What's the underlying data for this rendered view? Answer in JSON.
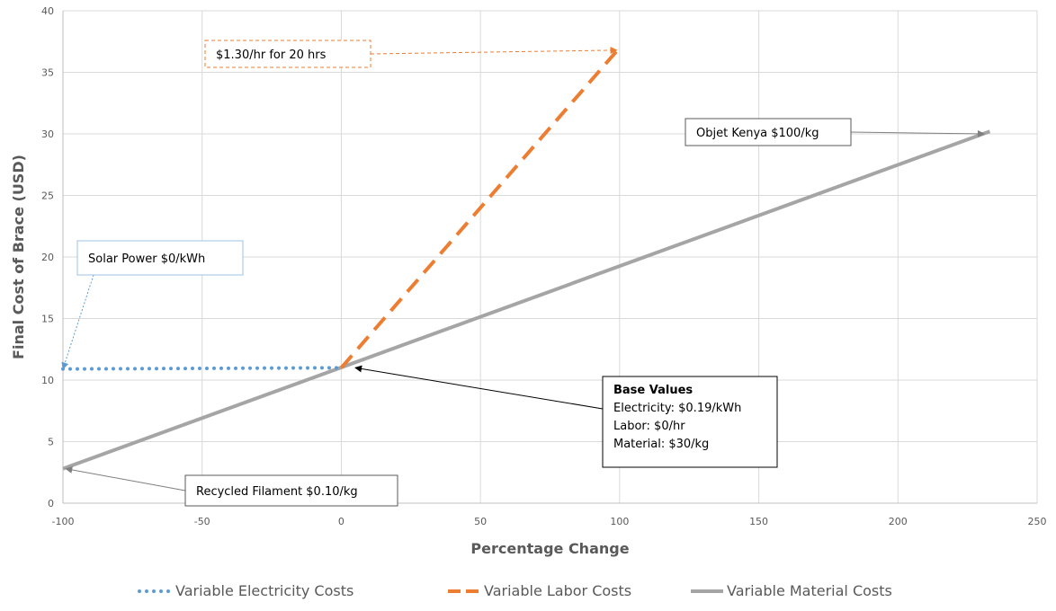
{
  "colors": {
    "electricity": "#5B9BD5",
    "labor": "#ED7D31",
    "material": "#A5A5A5",
    "grid": "#D9D9D9",
    "axis": "#BFBFBF"
  },
  "chart_data": {
    "type": "line",
    "xlabel": "Percentage Change",
    "ylabel": "Final Cost of Brace (USD)",
    "xlim": [
      -100,
      250
    ],
    "ylim": [
      0,
      40
    ],
    "x_ticks": [
      -100,
      -50,
      0,
      50,
      100,
      150,
      200,
      250
    ],
    "y_ticks": [
      0,
      5,
      10,
      15,
      20,
      25,
      30,
      35,
      40
    ],
    "grid": true,
    "legend_position": "bottom",
    "series": [
      {
        "name": "Variable Electricity Costs",
        "style": "dotted",
        "x": [
          -100,
          0
        ],
        "y": [
          10.9,
          11.0
        ]
      },
      {
        "name": "Variable Labor Costs",
        "style": "dashed",
        "x": [
          0,
          100
        ],
        "y": [
          11.0,
          37.0
        ]
      },
      {
        "name": "Variable Material Costs",
        "style": "solid",
        "x": [
          -100,
          233
        ],
        "y": [
          2.8,
          30.2
        ]
      }
    ],
    "annotations": [
      {
        "id": "labor-note",
        "lines": [
          "$1.30/hr for 20 hrs"
        ],
        "box_style": "dashed-orange",
        "target": [
          99,
          36.8
        ]
      },
      {
        "id": "material-high-note",
        "lines": [
          "Objet Kenya $100/kg"
        ],
        "box_style": "solid-dark",
        "target": [
          231,
          30.0
        ]
      },
      {
        "id": "electricity-note",
        "lines": [
          "Solar Power $0/kWh"
        ],
        "box_style": "solid-blue",
        "target": [
          -100,
          10.9
        ]
      },
      {
        "id": "base-note",
        "title": "Base Values",
        "lines": [
          "Electricity: $0.19/kWh",
          "Labor: $0/hr",
          "Material: $30/kg"
        ],
        "box_style": "solid-black",
        "target": [
          5,
          11.0
        ]
      },
      {
        "id": "material-low-note",
        "lines": [
          "Recycled Filament $0.10/kg"
        ],
        "box_style": "solid-dark",
        "target": [
          -99,
          2.8
        ]
      }
    ]
  }
}
